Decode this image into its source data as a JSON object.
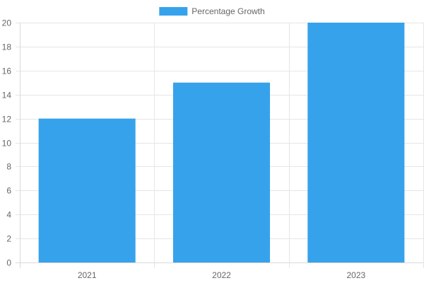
{
  "chart_data": {
    "type": "bar",
    "categories": [
      "2021",
      "2022",
      "2023"
    ],
    "series": [
      {
        "name": "Percentage Growth",
        "values": [
          12,
          15,
          20
        ],
        "color": "#36a2eb"
      }
    ],
    "ylim": [
      0,
      20
    ],
    "y_ticks": [
      0,
      2,
      4,
      6,
      8,
      10,
      12,
      14,
      16,
      18,
      20
    ],
    "grid": true,
    "legend_position": "top"
  }
}
